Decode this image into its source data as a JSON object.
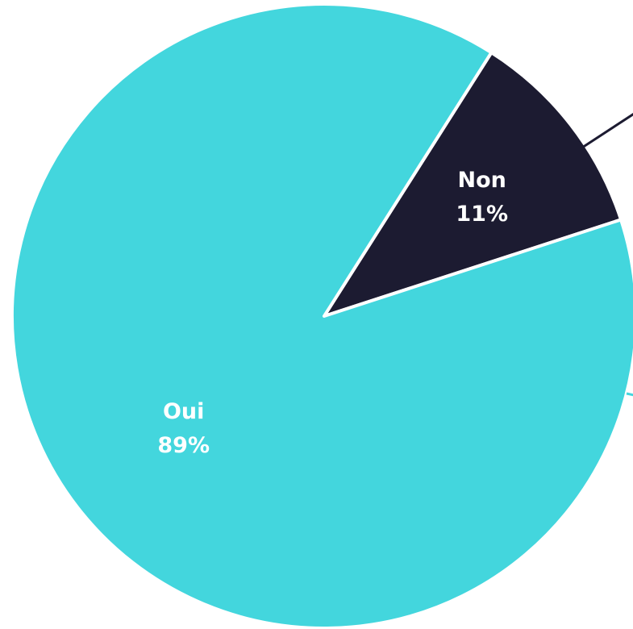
{
  "chart_data": {
    "type": "pie",
    "title": "",
    "slices": [
      {
        "label": "Non",
        "value": 11,
        "value_label": "11%",
        "color": "#1c1b31",
        "label_color": "#ffffff"
      },
      {
        "label": "Oui",
        "value": 89,
        "value_label": "89%",
        "color": "#43d6dd",
        "label_color": "#ffffff"
      }
    ],
    "leader_line_colors": [
      "#1c1b31",
      "#43d6dd"
    ]
  }
}
